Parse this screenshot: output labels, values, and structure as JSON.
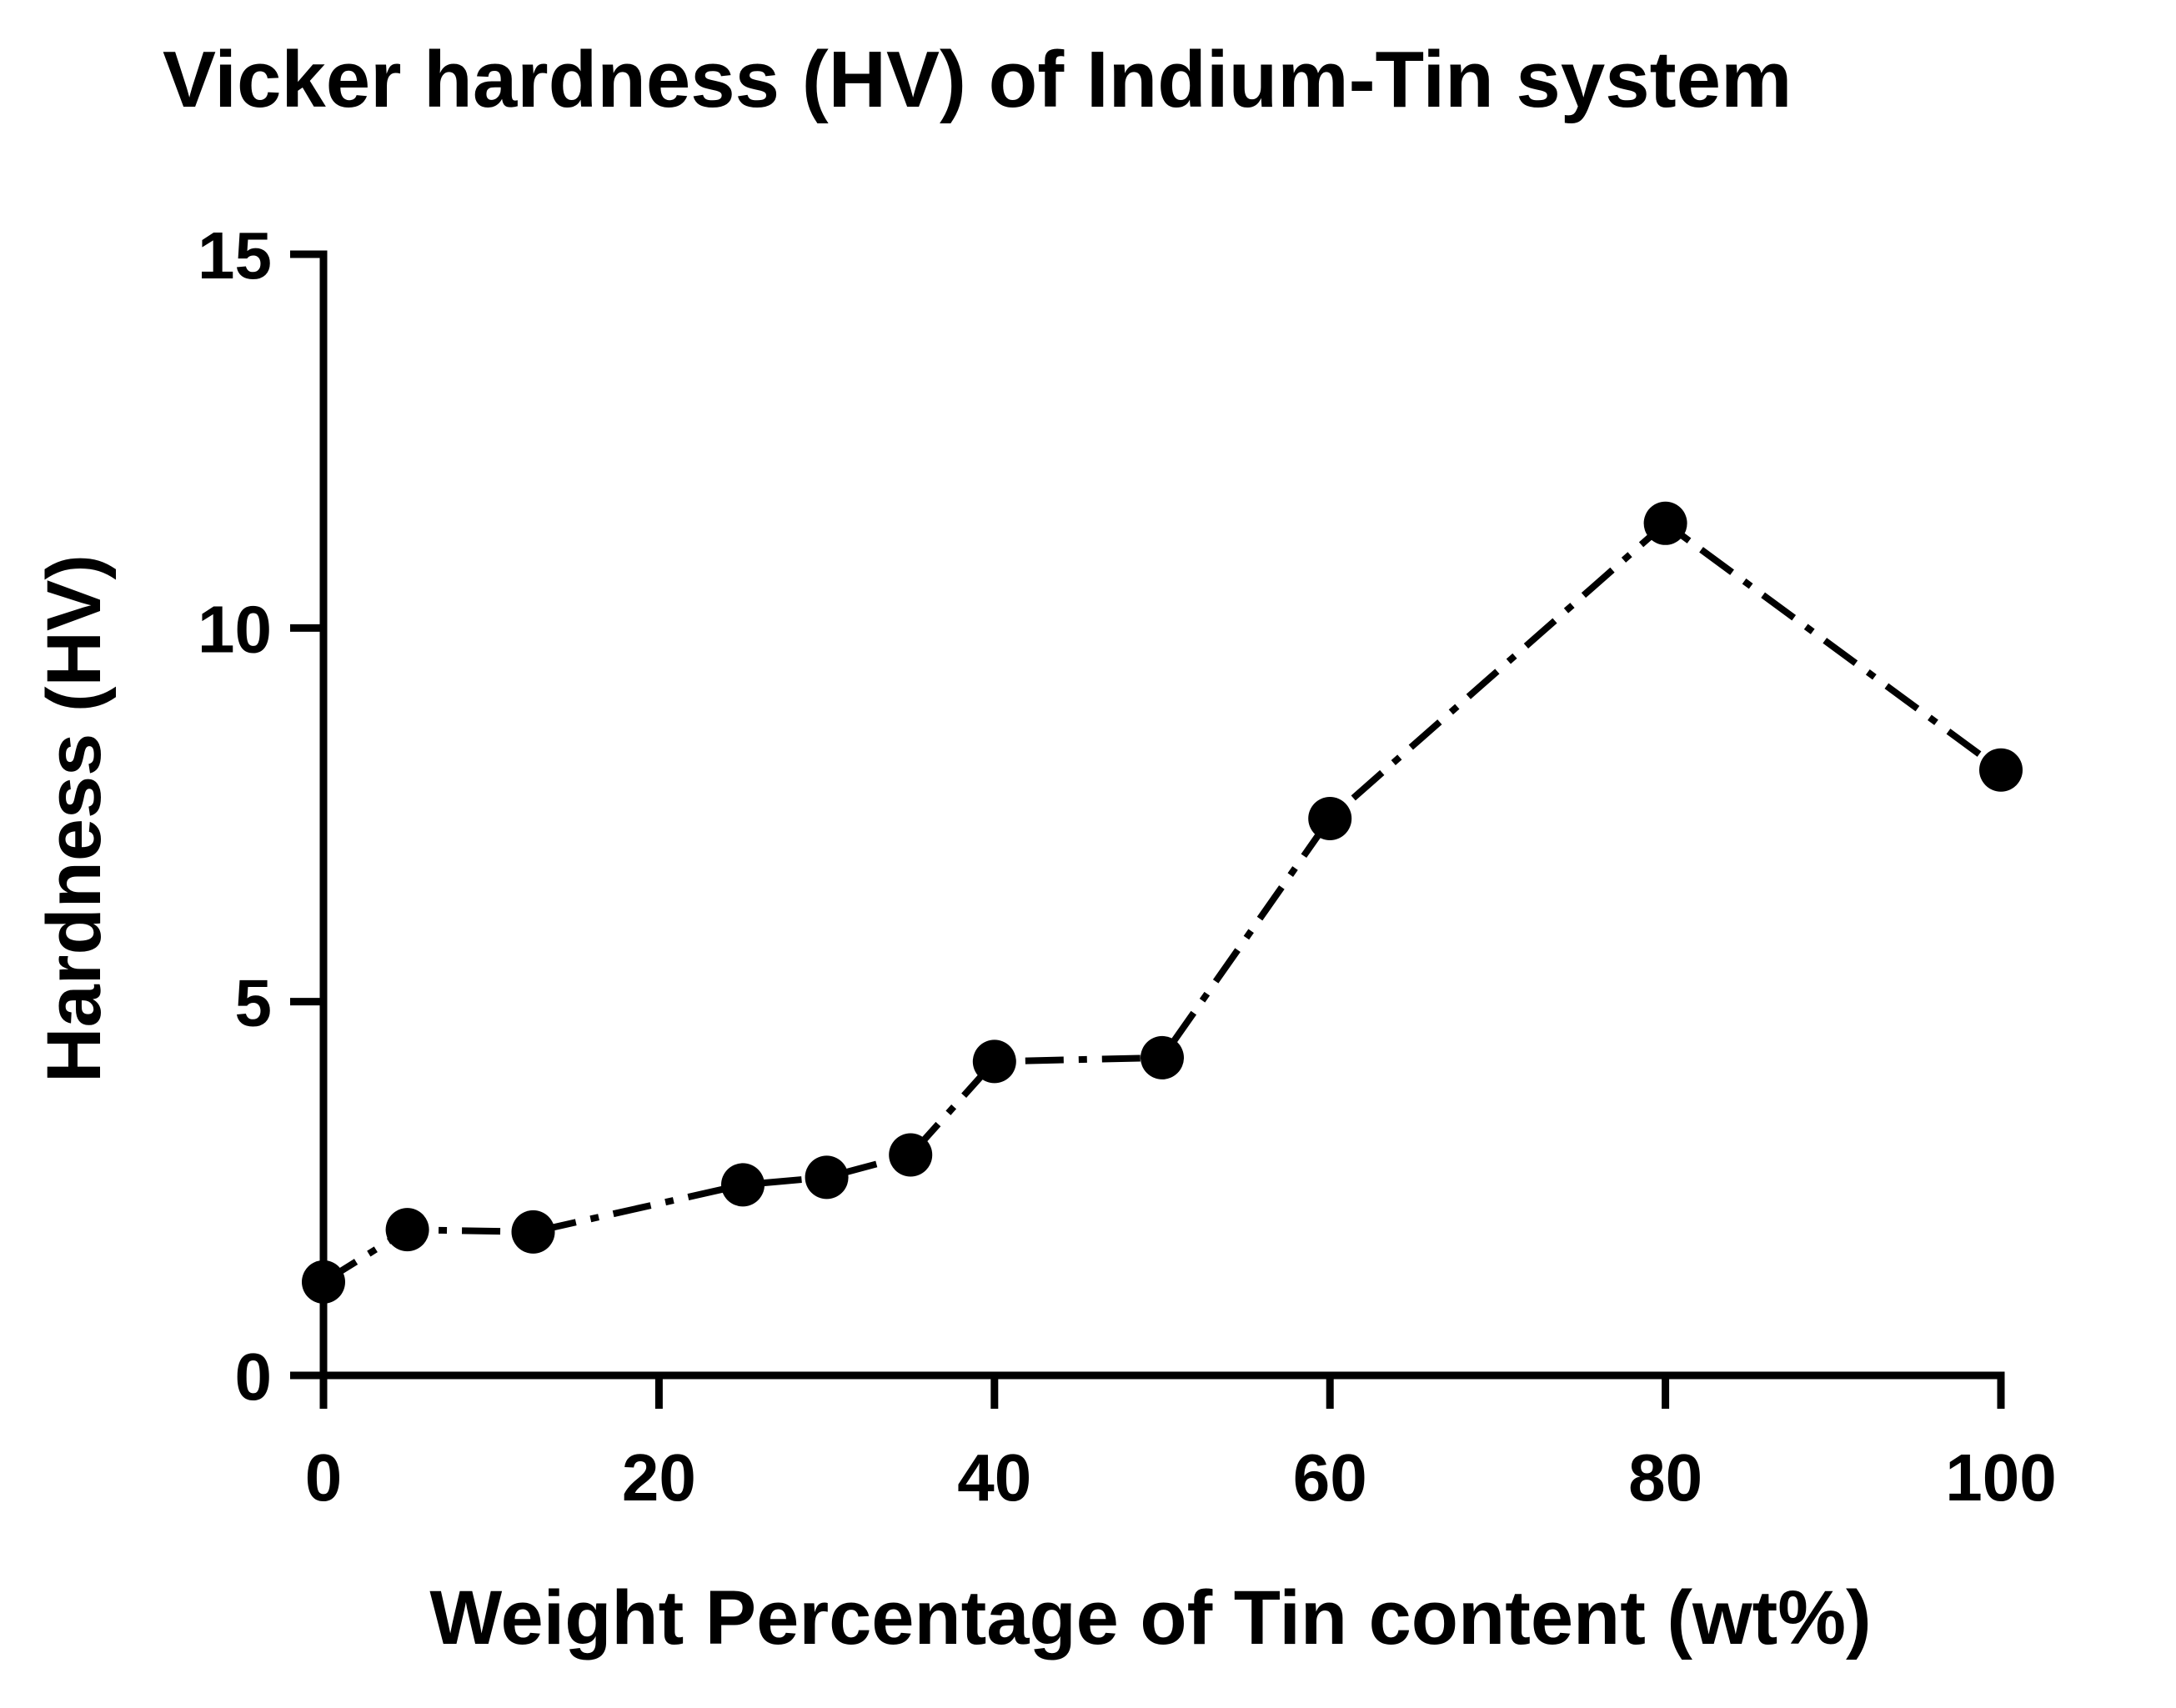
{
  "chart_data": {
    "type": "line",
    "title": "Vicker hardness (HV) of Indium-Tin system",
    "xlabel": "Weight Percentage of Tin content (wt%)",
    "ylabel": "Hardness (HV)",
    "xlim": [
      0,
      100
    ],
    "ylim": [
      0,
      15
    ],
    "x_ticks": [
      0,
      20,
      40,
      60,
      80,
      100
    ],
    "y_ticks": [
      0,
      5,
      10,
      15
    ],
    "grid": false,
    "legend": "none",
    "line_style": "dash-dot",
    "marker": "filled-circle",
    "series_color": "#000000",
    "series": [
      {
        "x": [
          0,
          5,
          12.5,
          25,
          30,
          35,
          40,
          50,
          60,
          80,
          100
        ],
        "y": [
          1.25,
          1.95,
          1.92,
          2.55,
          2.65,
          2.95,
          4.2,
          4.25,
          7.45,
          11.4,
          8.1
        ]
      }
    ]
  }
}
